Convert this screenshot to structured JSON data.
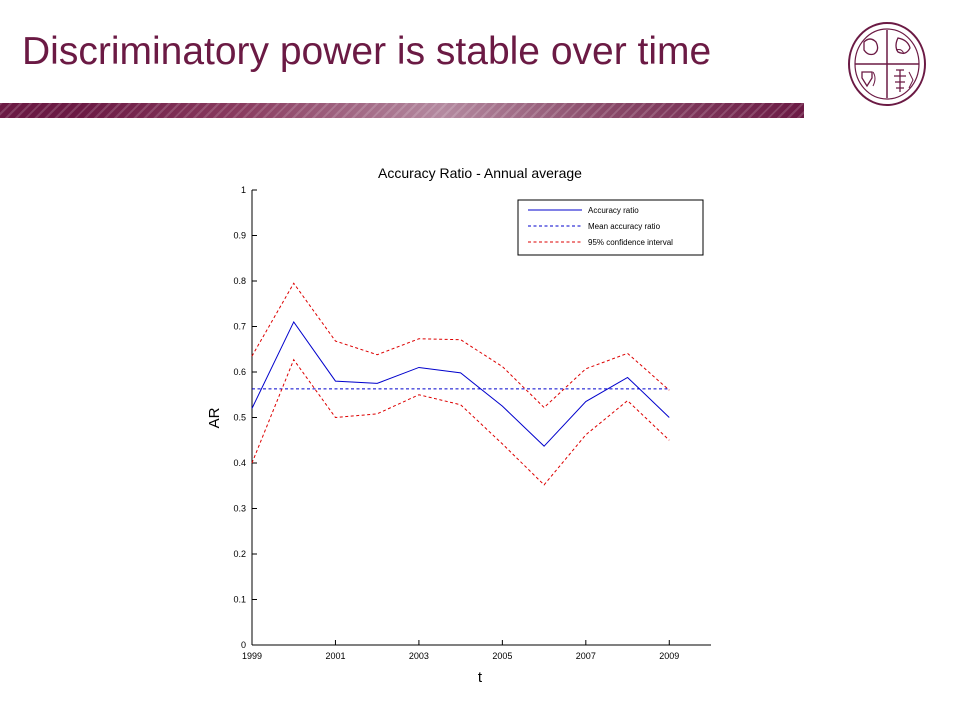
{
  "slide": {
    "title": "Discriminatory power is stable over time",
    "logo_icon": "university-seal-icon"
  },
  "colors": {
    "title": "#6b1a44",
    "band": "#6b1a44",
    "series_ar": "#0000cc",
    "series_mean": "#0000cc",
    "series_ci": "#dd0000"
  },
  "chart_data": {
    "type": "line",
    "title": "Accuracy Ratio - Annual average",
    "xlabel": "t",
    "ylabel": "AR",
    "xlim": [
      1999,
      2010
    ],
    "ylim": [
      0,
      1
    ],
    "x_ticks": [
      1999,
      2001,
      2003,
      2005,
      2007,
      2009
    ],
    "y_ticks": [
      0,
      0.1,
      0.2,
      0.3,
      0.4,
      0.5,
      0.6,
      0.7,
      0.8,
      0.9,
      1
    ],
    "y_tick_labels": [
      "0",
      "0.1",
      "0.2",
      "0.3",
      "0.4",
      "0.5",
      "0.6",
      "0.7",
      "0.8",
      "0.9",
      "1"
    ],
    "grid": false,
    "legend_position": "top-right",
    "x": [
      1999,
      2000,
      2001,
      2002,
      2003,
      2004,
      2005,
      2006,
      2007,
      2008,
      2009
    ],
    "series": [
      {
        "name": "Accuracy ratio",
        "style": "solid",
        "color": "#0000cc",
        "values": [
          0.52,
          0.71,
          0.58,
          0.575,
          0.61,
          0.598,
          0.525,
          0.437,
          0.535,
          0.588,
          0.5
        ]
      },
      {
        "name": "Mean accuracy ratio",
        "style": "dashed",
        "color": "#0000cc",
        "values": [
          0.563,
          0.563,
          0.563,
          0.563,
          0.563,
          0.563,
          0.563,
          0.563,
          0.563,
          0.563,
          0.563
        ]
      },
      {
        "name": "95% confidence interval",
        "style": "dashed",
        "color": "#dd0000",
        "values": [
          0.635,
          0.795,
          0.668,
          0.638,
          0.673,
          0.671,
          0.612,
          0.522,
          0.607,
          0.641,
          0.56
        ]
      },
      {
        "name": "",
        "style": "dashed",
        "color": "#dd0000",
        "values": [
          0.4,
          0.627,
          0.5,
          0.508,
          0.55,
          0.528,
          0.442,
          0.352,
          0.462,
          0.537,
          0.45
        ]
      }
    ]
  }
}
